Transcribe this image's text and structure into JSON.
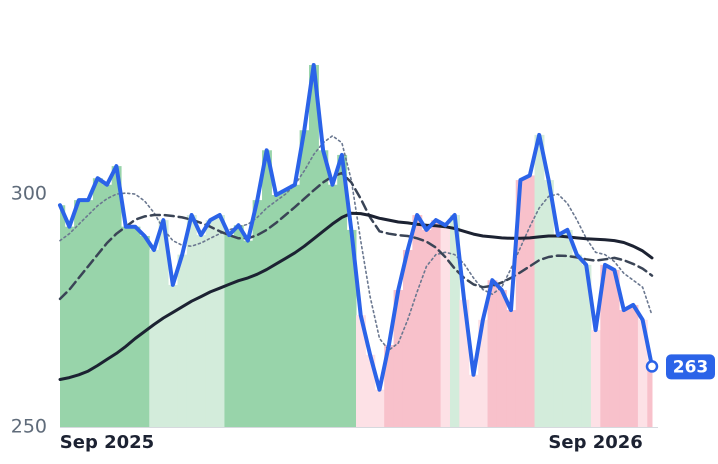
{
  "chart_data": {
    "type": "line",
    "categories": [
      null,
      null,
      null,
      null,
      null,
      "Sep 2025",
      null,
      null,
      null,
      null,
      null,
      null,
      null,
      null,
      null,
      null,
      null,
      null,
      null,
      null,
      null,
      null,
      null,
      null,
      null,
      null,
      null,
      null,
      null,
      null,
      null,
      null,
      null,
      null,
      null,
      null,
      null,
      null,
      null,
      null,
      null,
      null,
      null,
      null,
      null,
      null,
      null,
      null,
      null,
      null,
      null,
      null,
      null,
      null,
      null,
      null,
      null,
      "Sep 2026",
      null,
      null,
      null,
      null,
      null,
      null
    ],
    "ylim": [
      250,
      335
    ],
    "yticks": [
      250,
      300
    ],
    "series": [
      {
        "color": "#2b63e8",
        "line_style": "solid",
        "values": [
          297.6,
          293,
          298.7,
          298.7,
          303.4,
          302,
          306,
          293,
          293,
          291,
          288,
          294.4,
          280.5,
          287,
          295.5,
          291.2,
          294.4,
          295.5,
          291.2,
          293.3,
          290,
          298.7,
          309.4,
          299.8,
          300.9,
          302,
          313.7,
          327.7,
          309.4,
          302,
          308.4,
          292.3,
          274,
          265.5,
          258,
          267.6,
          279.4,
          288,
          295.5,
          292.3,
          294.4,
          293.3,
          295.5,
          277.3,
          261.2,
          273,
          281.5,
          279.4,
          275.1,
          303,
          304,
          312.7,
          303,
          291.2,
          292.3,
          287,
          284.8,
          270.8,
          284.8,
          283.7,
          275.1,
          276.2,
          273,
          263
        ]
      },
      {
        "color": "#1c2232",
        "line_style": "solid",
        "values": [
          260.2,
          260.6,
          261.2,
          262,
          263.2,
          264.5,
          265.8,
          267.3,
          269,
          270.5,
          272,
          273.4,
          274.6,
          275.8,
          277,
          278,
          279,
          279.8,
          280.6,
          281.4,
          282,
          282.8,
          283.8,
          285,
          286.2,
          287.4,
          288.8,
          290.4,
          292,
          293.6,
          295,
          295.9,
          295.8,
          295.4,
          294.8,
          294.4,
          294,
          293.8,
          293.5,
          293.3,
          293.2,
          293,
          292.6,
          292,
          291.4,
          291,
          290.8,
          290.6,
          290.5,
          290.5,
          290.6,
          290.8,
          291,
          291,
          290.8,
          290.6,
          290.4,
          290.3,
          290.2,
          290,
          289.6,
          288.8,
          287.8,
          286.3
        ]
      },
      {
        "color": "#3a4456",
        "line_style": "dashed",
        "values": [
          277.5,
          279.5,
          282,
          284.5,
          287,
          289.5,
          291.5,
          293,
          294.5,
          295.2,
          295.5,
          295.5,
          295.3,
          295,
          294.5,
          293.8,
          293,
          292,
          291.2,
          290.5,
          290.5,
          291.2,
          292.3,
          293.8,
          295.5,
          297.2,
          299,
          300.8,
          302.5,
          303.8,
          304.5,
          302.5,
          299,
          295,
          292,
          291.5,
          291.2,
          291,
          290.5,
          289.8,
          288.5,
          286.5,
          284,
          282,
          280.6,
          280,
          280.3,
          281,
          282,
          283.2,
          284.5,
          285.8,
          286.5,
          286.8,
          286.7,
          286.4,
          286,
          285.7,
          286,
          286.3,
          285.8,
          285,
          284,
          282.5
        ]
      },
      {
        "color": "#6b7890",
        "line_style": "dotted",
        "values": [
          290,
          291.5,
          293.5,
          295.5,
          297.5,
          299,
          300,
          300.2,
          300,
          298.5,
          296,
          292.5,
          290,
          289,
          288.8,
          289.5,
          290.5,
          291.5,
          292.3,
          293,
          293.5,
          295,
          297,
          298.5,
          300,
          302,
          305,
          308.5,
          311,
          312.5,
          311,
          303,
          290,
          278,
          269,
          266.5,
          268,
          273,
          279,
          284.5,
          287,
          287.5,
          287,
          285,
          282,
          279.5,
          278.5,
          280,
          284,
          288.5,
          293,
          297,
          299.5,
          300,
          298,
          294.5,
          290.5,
          287.5,
          287,
          285.5,
          283,
          281.5,
          280,
          274
        ]
      }
    ],
    "fill_colors": [
      "#98d4aa",
      "#98d4aa",
      "#98d4aa",
      "#98d4aa",
      "#98d4aa",
      "#98d4aa",
      "#98d4aa",
      "#98d4aa",
      "#98d4aa",
      "#98d4aa",
      "#d3ecdb",
      "#d3ecdb",
      "#d3ecdb",
      "#d3ecdb",
      "#d3ecdb",
      "#d3ecdb",
      "#d3ecdb",
      "#d3ecdb",
      "#98d4aa",
      "#98d4aa",
      "#98d4aa",
      "#98d4aa",
      "#98d4aa",
      "#98d4aa",
      "#98d4aa",
      "#98d4aa",
      "#98d4aa",
      "#98d4aa",
      "#98d4aa",
      "#98d4aa",
      "#98d4aa",
      "#98d4aa",
      "#fde1e6",
      "#fde1e6",
      "#fde1e6",
      "#f8c1cb",
      "#f8c1cb",
      "#f8c1cb",
      "#f8c1cb",
      "#f8c1cb",
      "#f8c1cb",
      "#fde1e6",
      "#d3ecdb",
      "#fde1e6",
      "#fde1e6",
      "#fde1e6",
      "#f8c1cb",
      "#f8c1cb",
      "#f8c1cb",
      "#f8c1cb",
      "#f8c1cb",
      "#d3ecdb",
      "#d3ecdb",
      "#d3ecdb",
      "#d3ecdb",
      "#d3ecdb",
      "#d3ecdb",
      "#fde1e6",
      "#f8c1cb",
      "#f8c1cb",
      "#f8c1cb",
      "#f8c1cb",
      "#fde1e6",
      "#f8c1cb"
    ]
  }
}
